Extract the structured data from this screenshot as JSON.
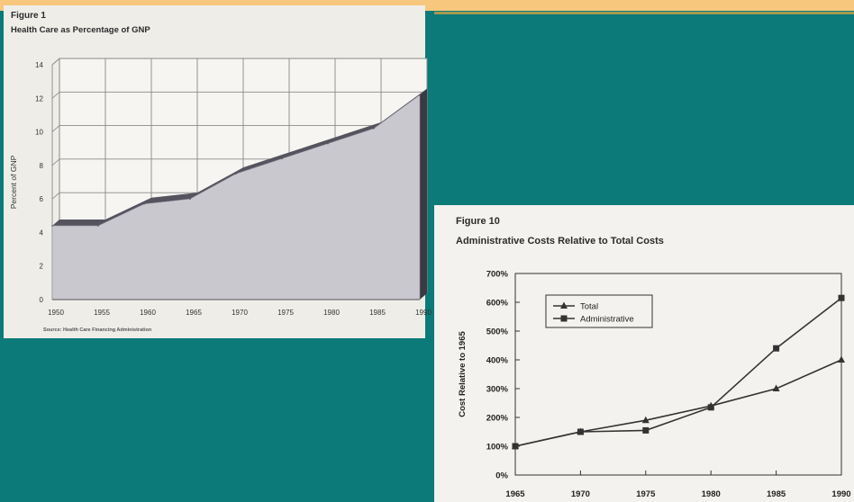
{
  "chart_data": [
    {
      "type": "area",
      "figure_label": "Figure 1",
      "title": "Health Care as Percentage of GNP",
      "ylabel": "Percent of GNP",
      "xlabel": "",
      "source": "Source: Health Care Financing Administration",
      "x": [
        1950,
        1955,
        1960,
        1965,
        1970,
        1975,
        1980,
        1985,
        1990
      ],
      "values": [
        4.4,
        4.4,
        5.7,
        6.0,
        7.5,
        8.4,
        9.3,
        10.2,
        12.2
      ],
      "xlim": [
        1950,
        1990
      ],
      "ylim": [
        0,
        14
      ],
      "yticks": [
        0,
        2,
        4,
        6,
        8,
        10,
        12,
        14
      ],
      "xticks": [
        1950,
        1955,
        1960,
        1965,
        1970,
        1975,
        1980,
        1985,
        1990
      ],
      "grid": true,
      "colors": {
        "fill": "#c9c8cf",
        "edge": "#55535e",
        "grid": "#8a8a8a"
      }
    },
    {
      "type": "line",
      "figure_label": "Figure 10",
      "title": "Administrative Costs Relative to Total Costs",
      "ylabel": "Cost Relative to 1965",
      "xlabel": "",
      "categories": [
        1965,
        1970,
        1975,
        1980,
        1985,
        1990
      ],
      "series": [
        {
          "name": "Total",
          "marker": "triangle",
          "values": [
            100,
            150,
            190,
            240,
            300,
            400
          ]
        },
        {
          "name": "Administrative",
          "marker": "square",
          "values": [
            100,
            150,
            155,
            235,
            440,
            615
          ]
        }
      ],
      "ylim": [
        0,
        700
      ],
      "yticks": [
        "0%",
        "100%",
        "200%",
        "300%",
        "400%",
        "500%",
        "600%",
        "700%"
      ],
      "grid": false,
      "legend": "top-left",
      "colors": {
        "line": "#333333"
      }
    }
  ]
}
